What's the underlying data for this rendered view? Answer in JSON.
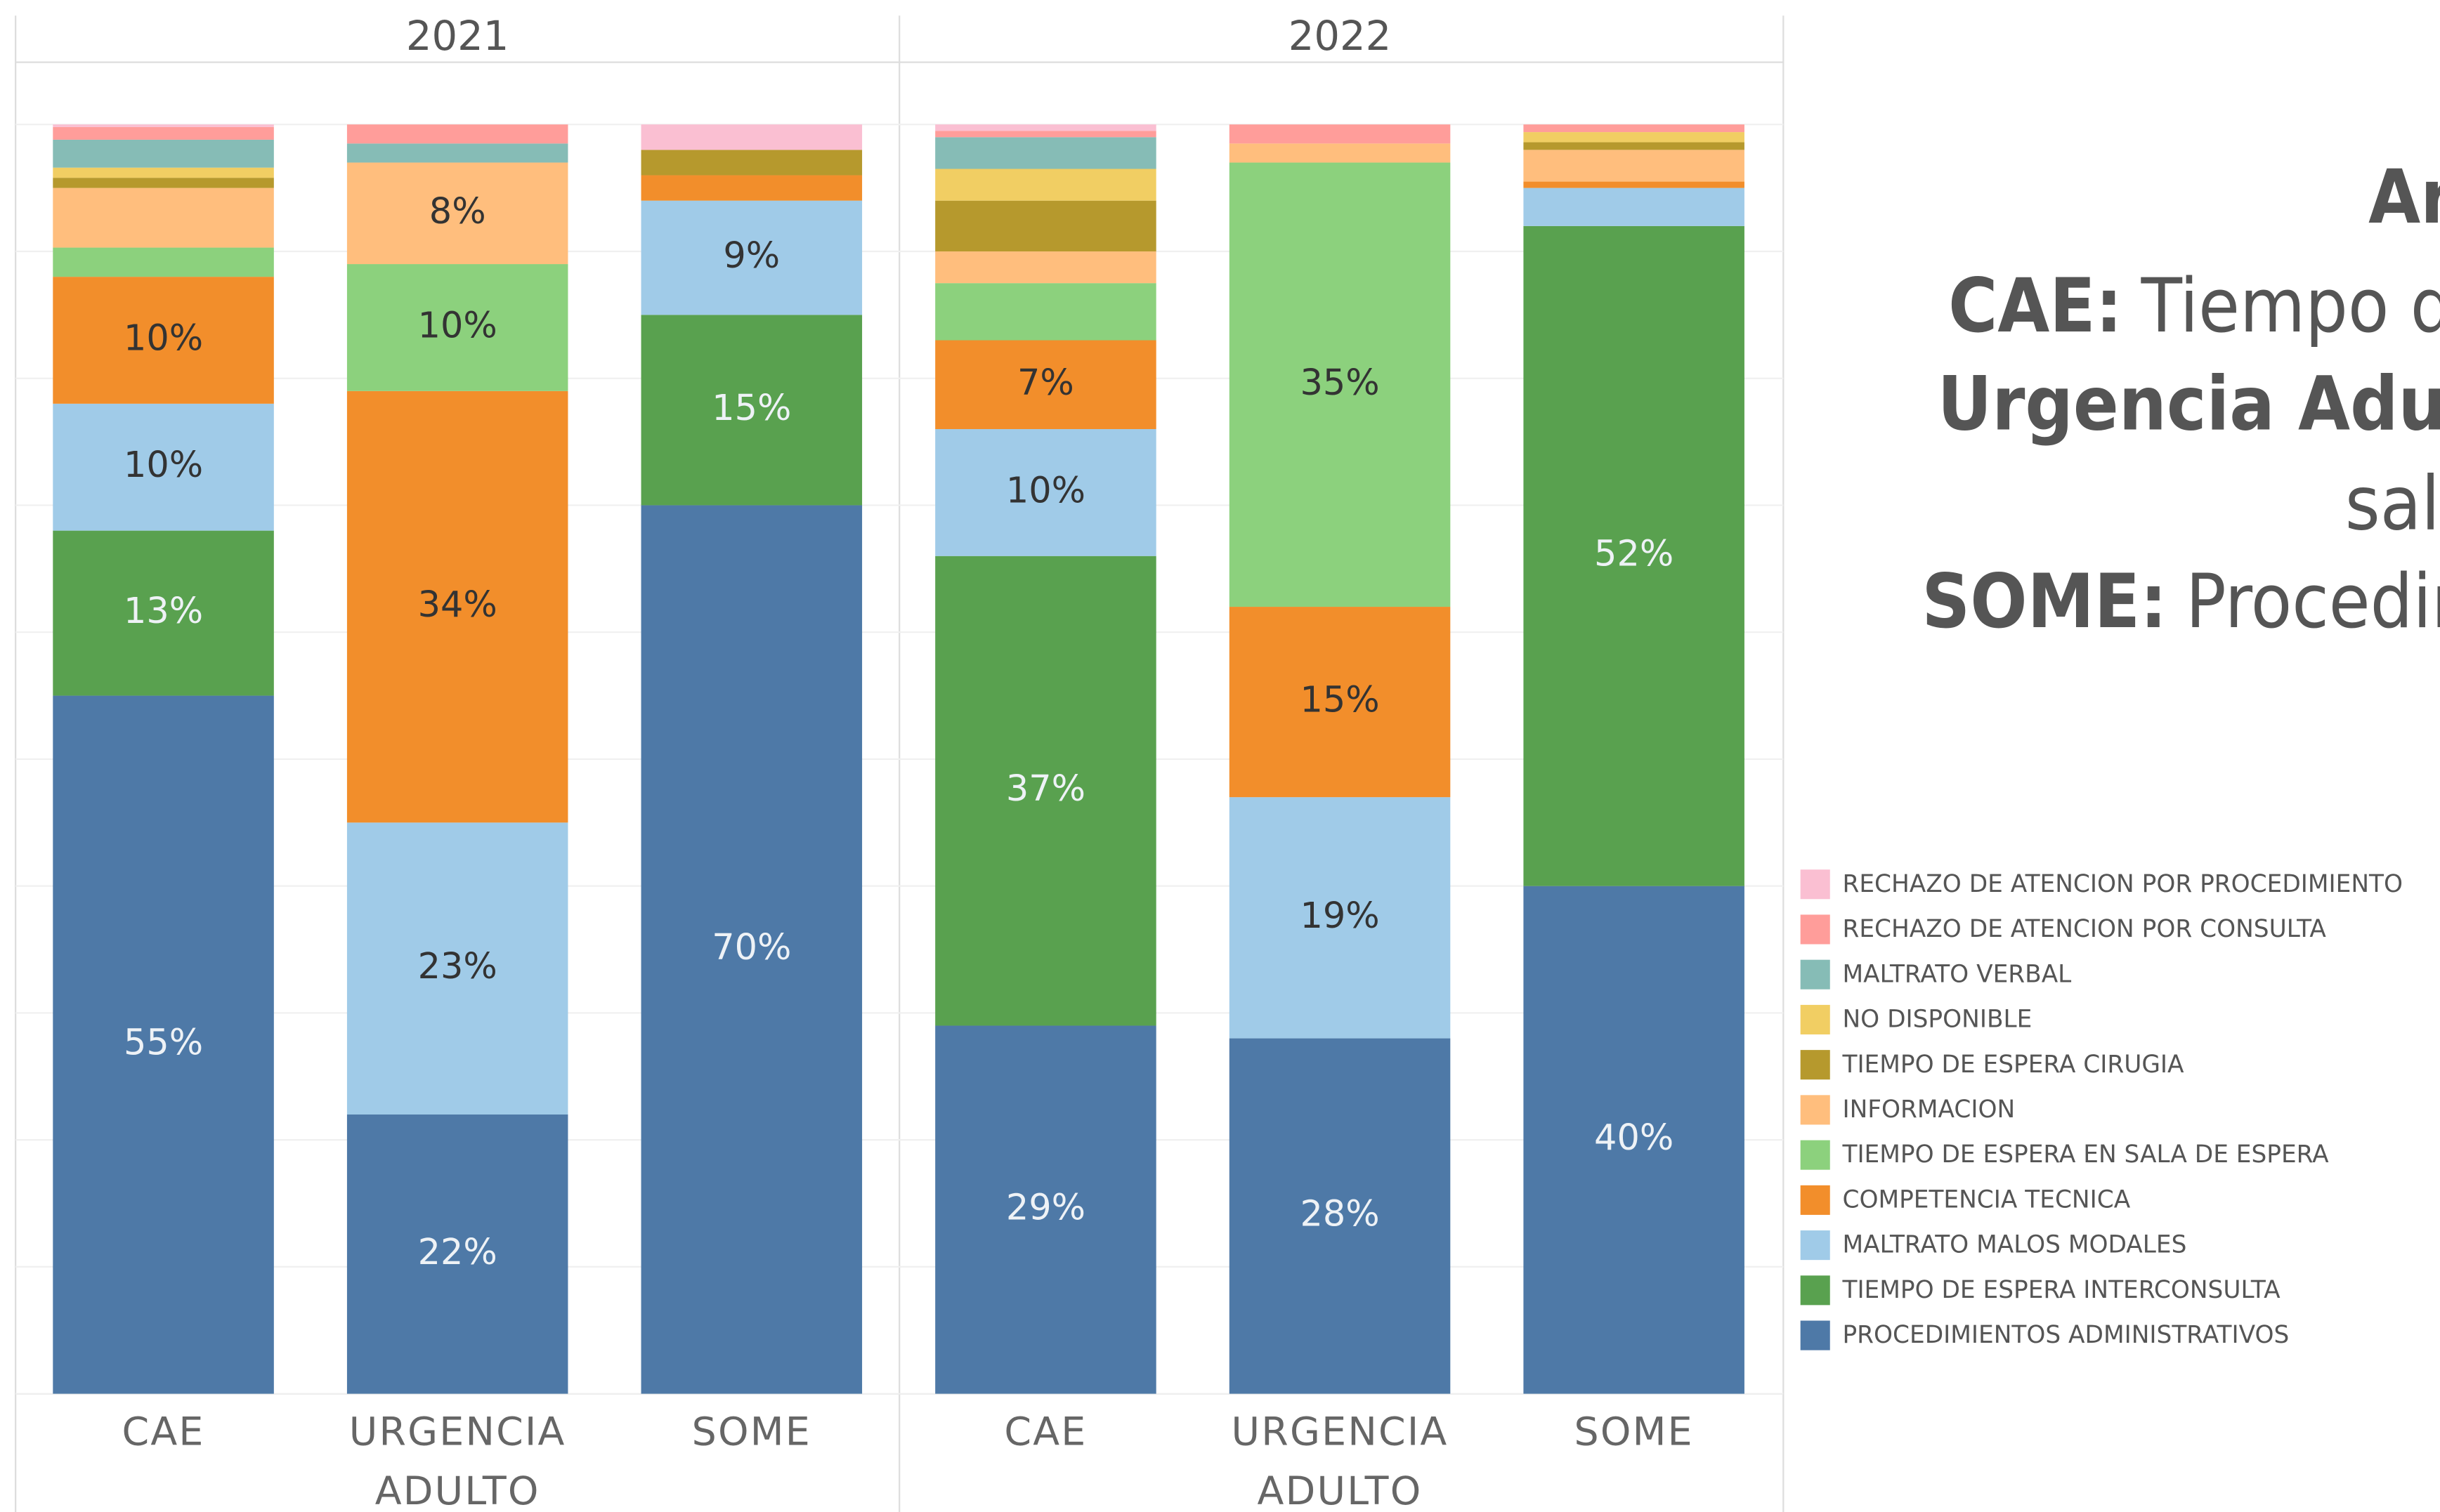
{
  "chart_data": {
    "type": "stacked_bar",
    "facets": [
      "2021",
      "2022"
    ],
    "categories": [
      "CAE",
      "URGENCIA ADULTO",
      "SOME",
      "CAE",
      "URGENCIA ADULTO",
      "SOME"
    ],
    "ylim": [
      0,
      100
    ],
    "yticks": [
      0,
      10,
      20,
      30,
      40,
      50,
      60,
      70,
      80,
      90,
      100
    ],
    "grid": true,
    "legend": "right",
    "series": [
      {
        "name": "PROCEDIMIENTOS ADMINISTRATIVOS",
        "color": "#4e79a7",
        "values": [
          55,
          22,
          70,
          29,
          28,
          40
        ],
        "value_labels": [
          "55%",
          "22%",
          "70%",
          "29%",
          "28%",
          "40%"
        ]
      },
      {
        "name": "TIEMPO DE ESPERA INTERCONSULTA",
        "color": "#59a14f",
        "values": [
          13,
          0,
          15,
          37,
          0,
          52
        ],
        "value_labels": [
          "13%",
          null,
          "15%",
          "37%",
          null,
          "52%"
        ]
      },
      {
        "name": "MALTRATO MALOS MODALES",
        "color": "#a0cbe8",
        "values": [
          10,
          23,
          9,
          10,
          19,
          3
        ],
        "value_labels": [
          "10%",
          "23%",
          "9%",
          "10%",
          "19%",
          null
        ]
      },
      {
        "name": "COMPETENCIA TECNICA",
        "color": "#f28e2b",
        "values": [
          10,
          34,
          2,
          7,
          15,
          0.5
        ],
        "value_labels": [
          "10%",
          "34%",
          null,
          "7%",
          "15%",
          null
        ]
      },
      {
        "name": "TIEMPO DE ESPERA EN SALA DE ESPERA",
        "color": "#8cd17d",
        "values": [
          2.3,
          10,
          0,
          4.5,
          35,
          0
        ],
        "value_labels": [
          null,
          "10%",
          null,
          null,
          "35%",
          null
        ]
      },
      {
        "name": "INFORMACION",
        "color": "#ffbe7d",
        "values": [
          4.7,
          8,
          0,
          2.5,
          1.5,
          2.5
        ],
        "value_labels": [
          null,
          "8%",
          null,
          null,
          null,
          null
        ]
      },
      {
        "name": "TIEMPO DE ESPERA CIRUGIA",
        "color": "#b6992d",
        "values": [
          0.8,
          0,
          2,
          4,
          0,
          0.6
        ]
      },
      {
        "name": "NO DISPONIBLE",
        "color": "#f1ce63",
        "values": [
          0.8,
          0,
          0,
          2.5,
          0,
          0.8
        ]
      },
      {
        "name": "MALTRATO VERBAL",
        "color": "#86bcb6",
        "values": [
          2.2,
          1.5,
          0,
          2.5,
          0,
          0
        ]
      },
      {
        "name": "RECHAZO DE ATENCION POR CONSULTA",
        "color": "#ff9d9a",
        "values": [
          1,
          1.5,
          0,
          0.5,
          1.5,
          0.6
        ]
      },
      {
        "name": "RECHAZO DE ATENCION POR PROCEDIMIENTO",
        "color": "#fabfd2",
        "values": [
          0.2,
          0,
          2,
          0.5,
          0,
          0
        ]
      }
    ]
  },
  "annotations": [
    [
      {
        "text": "Ar",
        "bold": true
      }
    ],
    [
      {
        "text": "CAE:",
        "bold": true
      },
      {
        "text": "Tiempo d",
        "bold": false
      }
    ],
    [
      {
        "text": "Urgencia Adul",
        "bold": true
      }
    ],
    [
      {
        "text": "sal",
        "bold": false
      }
    ],
    [
      {
        "text": "SOME:",
        "bold": true
      },
      {
        "text": "Procedir",
        "bold": false
      }
    ]
  ]
}
